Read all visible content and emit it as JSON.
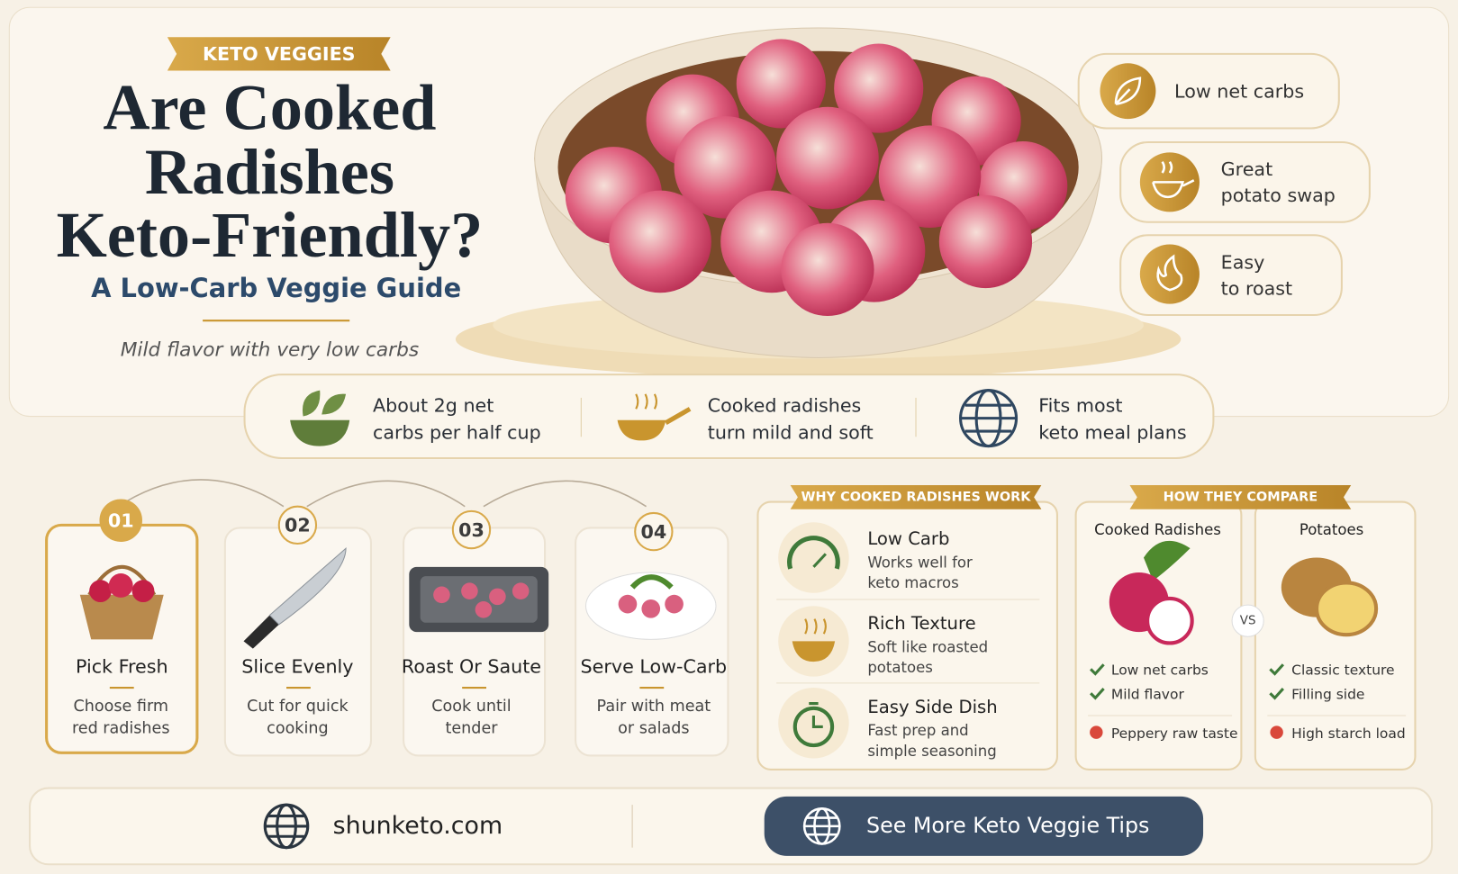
{
  "header": {
    "badge": "KETO VEGGIES",
    "title_lines": [
      "Are Cooked",
      "Radishes",
      "Keto-Friendly?"
    ],
    "subtitle": "A Low-Carb Veggie Guide",
    "tagline": "Mild flavor with very low carbs"
  },
  "side_features": [
    [
      "Low net carbs"
    ],
    [
      "Great",
      "potato swap"
    ],
    [
      "Easy",
      "to roast"
    ]
  ],
  "facts": [
    [
      "About 2g net",
      "carbs per half cup"
    ],
    [
      "Cooked radishes",
      "turn mild and soft"
    ],
    [
      "Fits most",
      "keto meal plans"
    ]
  ],
  "steps": [
    {
      "number": "01",
      "title": "Pick Fresh",
      "lines": [
        "Choose firm",
        "red radishes"
      ]
    },
    {
      "number": "02",
      "title": "Slice Evenly",
      "lines": [
        "Cut for quick",
        "cooking"
      ]
    },
    {
      "number": "03",
      "title": "Roast Or Saute",
      "lines": [
        "Cook until",
        "tender"
      ]
    },
    {
      "number": "04",
      "title": "Serve Low-Carb",
      "lines": [
        "Pair with meat",
        "or salads"
      ]
    }
  ],
  "why": {
    "heading": "WHY COOKED RADISHES WORK",
    "items": [
      {
        "title": "Low Carb",
        "lines": [
          "Works well for",
          "keto macros"
        ]
      },
      {
        "title": "Rich Texture",
        "lines": [
          "Soft like roasted",
          "potatoes"
        ]
      },
      {
        "title": "Easy Side Dish",
        "lines": [
          "Fast prep and",
          "simple seasoning"
        ]
      }
    ]
  },
  "compare": {
    "heading": "HOW THEY COMPARE",
    "vs": "VS",
    "columns": [
      {
        "name": "Cooked Radishes",
        "pros": [
          "Low net carbs",
          "Mild flavor"
        ],
        "cons": [
          "Peppery raw taste"
        ]
      },
      {
        "name": "Potatoes",
        "pros": [
          "Classic texture",
          "Filling side"
        ],
        "cons": [
          "High starch load"
        ]
      }
    ]
  },
  "footer": {
    "site": "shunketo.com",
    "button": "See More Keto Veggie Tips"
  }
}
